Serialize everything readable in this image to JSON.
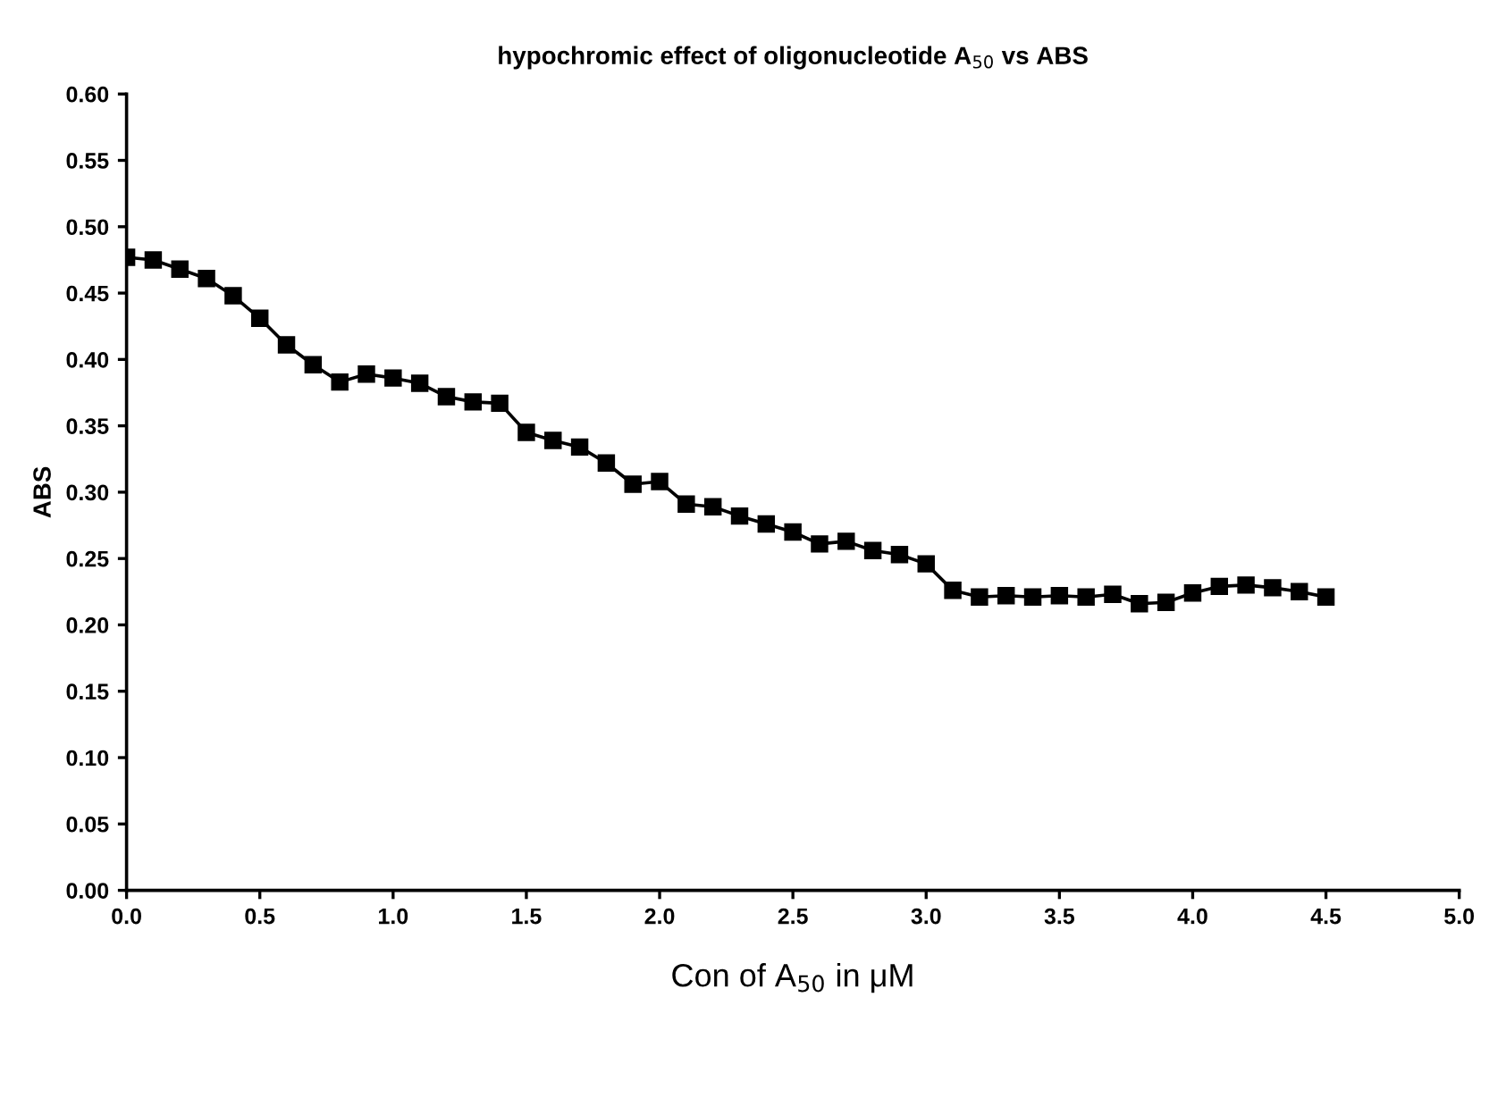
{
  "chart_data": {
    "type": "line",
    "title": "hypochromic effect of oligonucleotide A$_{50}$ vs ABS",
    "xlabel": "Con of A$_{50}$ in μM",
    "ylabel": "ABS",
    "x": [
      0.0,
      0.1,
      0.2,
      0.3,
      0.4,
      0.5,
      0.6,
      0.7,
      0.8,
      0.9,
      1.0,
      1.1,
      1.2,
      1.3,
      1.4,
      1.5,
      1.6,
      1.7,
      1.8,
      1.9,
      2.0,
      2.1,
      2.2,
      2.3,
      2.4,
      2.5,
      2.6,
      2.7,
      2.8,
      2.9,
      3.0,
      3.1,
      3.2,
      3.3,
      3.4,
      3.5,
      3.6,
      3.7,
      3.8,
      3.9,
      4.0,
      4.1,
      4.2,
      4.3,
      4.4,
      4.5
    ],
    "series": [
      {
        "color": "#000000",
        "values": [
          0.477,
          0.475,
          0.468,
          0.461,
          0.448,
          0.431,
          0.411,
          0.396,
          0.383,
          0.389,
          0.386,
          0.382,
          0.372,
          0.368,
          0.367,
          0.345,
          0.339,
          0.334,
          0.322,
          0.306,
          0.308,
          0.291,
          0.289,
          0.282,
          0.276,
          0.27,
          0.261,
          0.263,
          0.256,
          0.253,
          0.246,
          0.226,
          0.221,
          0.222,
          0.221,
          0.222,
          0.221,
          0.223,
          0.216,
          0.217,
          0.224,
          0.229,
          0.23,
          0.228,
          0.225,
          0.221
        ]
      }
    ],
    "xlim": [
      0,
      5
    ],
    "ylim": [
      0,
      0.6
    ],
    "xticks": [
      {
        "value": 0,
        "label": "0.0"
      },
      0.5,
      {
        "value": 1,
        "label": "1.0"
      },
      1.5,
      {
        "value": 2,
        "label": "2.0"
      },
      2.5,
      {
        "value": 3,
        "label": "3.0"
      },
      3.5,
      {
        "value": 4,
        "label": "4.0"
      },
      4.5,
      {
        "value": 5,
        "label": "5.0"
      }
    ],
    "yticks": [
      {
        "value": 0,
        "label": "0.00"
      },
      0.05,
      {
        "value": 0.1,
        "label": "0.10"
      },
      0.15,
      {
        "value": 0.2,
        "label": "0.20"
      },
      0.25,
      {
        "value": 0.3,
        "label": "0.30"
      },
      0.35,
      {
        "value": 0.4,
        "label": "0.40"
      },
      0.45,
      {
        "value": 0.5,
        "label": "0.50"
      },
      0.55,
      {
        "value": 0.6,
        "label": "0.60"
      }
    ],
    "marker": "square",
    "line_style": "solid"
  }
}
